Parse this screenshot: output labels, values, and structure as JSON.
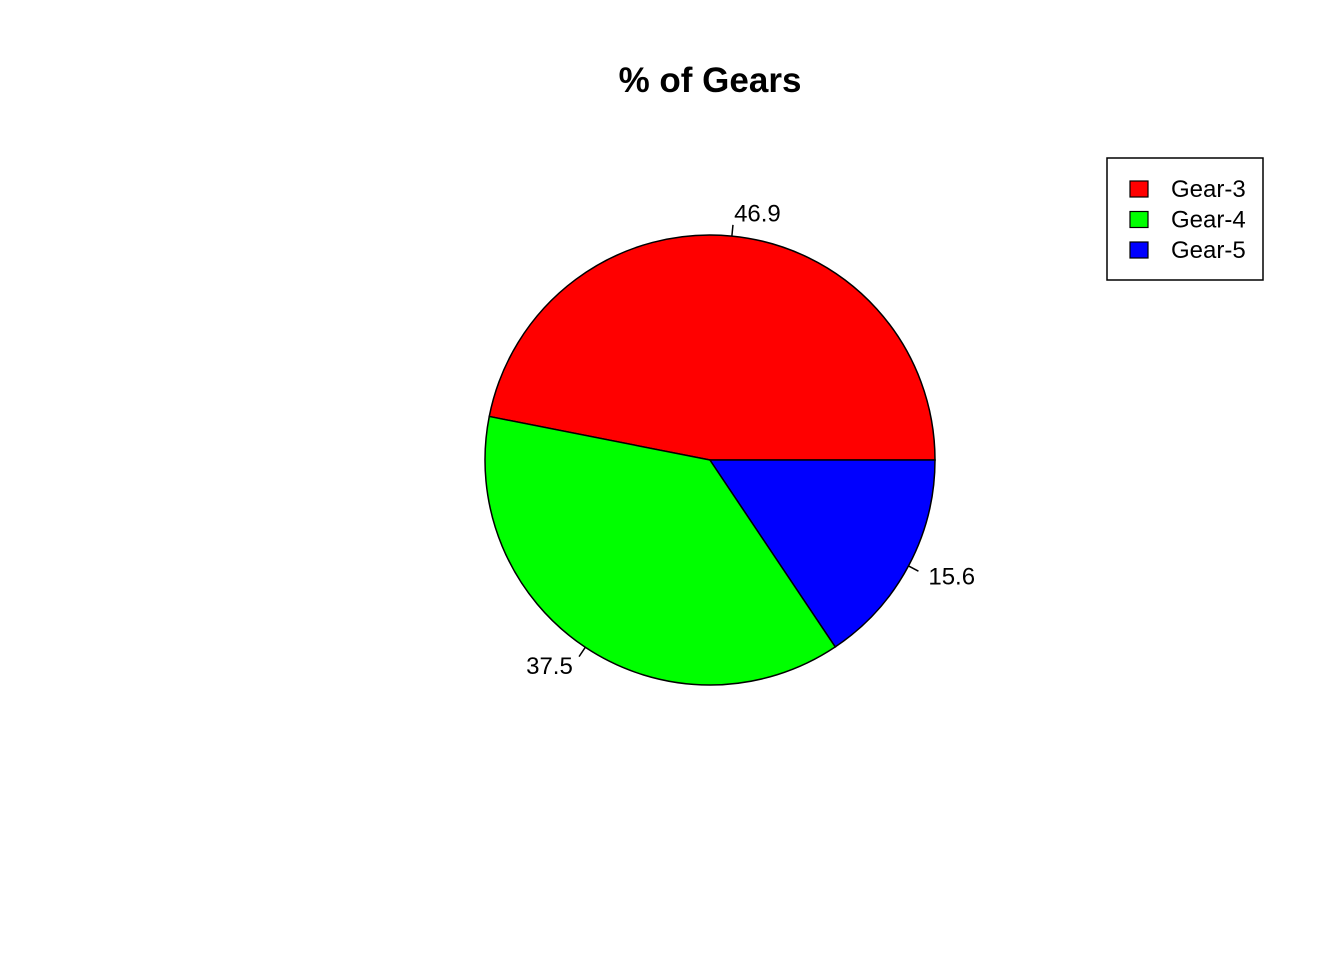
{
  "chart_data": {
    "type": "pie",
    "title": "% of Gears",
    "categories": [
      "Gear-3",
      "Gear-4",
      "Gear-5"
    ],
    "values": [
      46.9,
      37.5,
      15.6
    ],
    "labels": [
      "46.9",
      "37.5",
      "15.6"
    ],
    "colors": [
      "#ff0000",
      "#00ff00",
      "#0000ff"
    ],
    "start_angle_deg": 0,
    "direction": "counterclockwise",
    "legend": {
      "position": "top-right",
      "entries": [
        "Gear-3",
        "Gear-4",
        "Gear-5"
      ]
    }
  }
}
